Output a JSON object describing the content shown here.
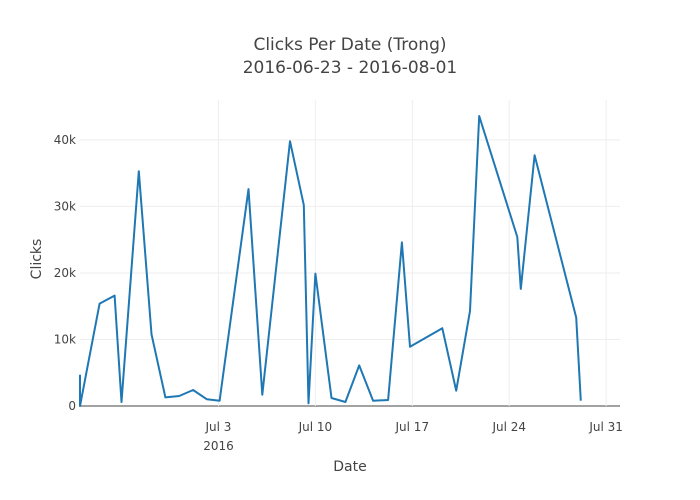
{
  "chart_data": {
    "type": "line",
    "title": "Clicks Per Date (Trong)",
    "subtitle": "2016-06-23 - 2016-08-01",
    "xlabel": "Date",
    "ylabel": "Clicks",
    "line_color": "#1f77b4",
    "grid": true,
    "x_ticks": [
      {
        "date": "2016-07-03",
        "label": "Jul 3",
        "sublabel": "2016"
      },
      {
        "date": "2016-07-10",
        "label": "Jul 10"
      },
      {
        "date": "2016-07-17",
        "label": "Jul 17"
      },
      {
        "date": "2016-07-24",
        "label": "Jul 24"
      },
      {
        "date": "2016-07-31",
        "label": "Jul 31"
      }
    ],
    "y_ticks": [
      {
        "value": 0,
        "label": "0"
      },
      {
        "value": 10000,
        "label": "10k"
      },
      {
        "value": 20000,
        "label": "20k"
      },
      {
        "value": 30000,
        "label": "30k"
      },
      {
        "value": 40000,
        "label": "40k"
      }
    ],
    "xlim": [
      "2016-06-23",
      "2016-08-01"
    ],
    "ylim": [
      0,
      46000
    ],
    "series": [
      {
        "points": [
          {
            "date": "2016-06-23T00:00",
            "value": 4700
          },
          {
            "date": "2016-06-23T00:00",
            "value": 0
          },
          {
            "date": "2016-06-24T10:00",
            "value": 15400
          },
          {
            "date": "2016-06-25T12:00",
            "value": 16600
          },
          {
            "date": "2016-06-26T00:00",
            "value": 600
          },
          {
            "date": "2016-06-27T06:00",
            "value": 35300
          },
          {
            "date": "2016-06-28T04:00",
            "value": 10800
          },
          {
            "date": "2016-06-29T04:00",
            "value": 1300
          },
          {
            "date": "2016-06-30T04:00",
            "value": 1500
          },
          {
            "date": "2016-07-01T04:00",
            "value": 2400
          },
          {
            "date": "2016-07-02T04:00",
            "value": 1000
          },
          {
            "date": "2016-07-03T02:00",
            "value": 800
          },
          {
            "date": "2016-07-05T04:00",
            "value": 32600
          },
          {
            "date": "2016-07-06T04:00",
            "value": 1700
          },
          {
            "date": "2016-07-08T04:00",
            "value": 39800
          },
          {
            "date": "2016-07-09T04:00",
            "value": 30200
          },
          {
            "date": "2016-07-09T12:00",
            "value": 400
          },
          {
            "date": "2016-07-10T00:00",
            "value": 19900
          },
          {
            "date": "2016-07-11T04:00",
            "value": 1200
          },
          {
            "date": "2016-07-12T04:00",
            "value": 600
          },
          {
            "date": "2016-07-13T04:00",
            "value": 6100
          },
          {
            "date": "2016-07-14T04:00",
            "value": 800
          },
          {
            "date": "2016-07-15T06:00",
            "value": 900
          },
          {
            "date": "2016-07-16T06:00",
            "value": 24600
          },
          {
            "date": "2016-07-16T20:00",
            "value": 8900
          },
          {
            "date": "2016-07-19T04:00",
            "value": 11700
          },
          {
            "date": "2016-07-20T04:00",
            "value": 2300
          },
          {
            "date": "2016-07-21T04:00",
            "value": 14300
          },
          {
            "date": "2016-07-21T20:00",
            "value": 43600
          },
          {
            "date": "2016-07-24T14:00",
            "value": 25400
          },
          {
            "date": "2016-07-24T20:00",
            "value": 17600
          },
          {
            "date": "2016-07-25T20:00",
            "value": 37700
          },
          {
            "date": "2016-07-28T20:00",
            "value": 13300
          },
          {
            "date": "2016-07-29T04:00",
            "value": 800
          }
        ]
      }
    ]
  }
}
